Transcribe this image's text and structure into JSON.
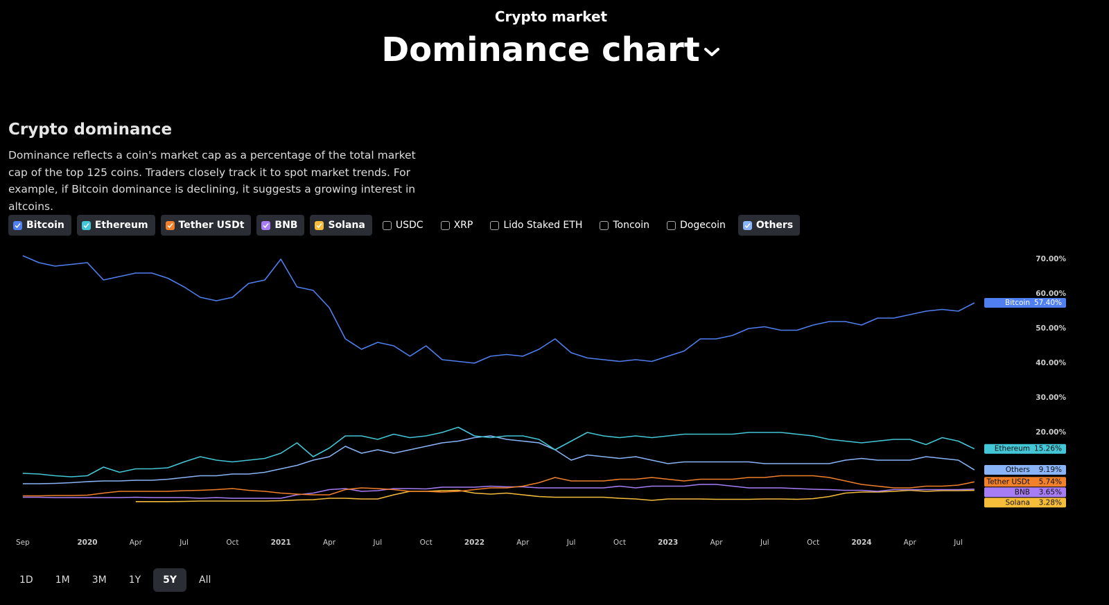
{
  "header": {
    "kicker": "Crypto market",
    "title": "Dominance chart"
  },
  "section": {
    "title": "Crypto dominance",
    "description": "Dominance reflects a coin's market cap as a percentage of the total market cap of the top 125 coins. Traders closely track it to spot market trends. For example, if Bitcoin dominance is declining, it suggests a growing interest in altcoins."
  },
  "unselected": [
    "USDC",
    "XRP",
    "Lido Staked ETH",
    "Toncoin",
    "Dogecoin"
  ],
  "ranges": [
    "1D",
    "1M",
    "3M",
    "1Y",
    "5Y",
    "All"
  ],
  "active_range": "5Y",
  "chart_data": {
    "type": "line",
    "categories": [
      "Sep",
      null,
      null,
      null,
      "2020",
      null,
      null,
      "Apr",
      null,
      null,
      "Jul",
      null,
      null,
      "Oct",
      null,
      null,
      "2021",
      null,
      null,
      "Apr",
      null,
      null,
      "Jul",
      null,
      null,
      "Oct",
      null,
      null,
      "2022",
      null,
      null,
      "Apr",
      null,
      null,
      "Jul",
      null,
      null,
      "Oct",
      null,
      null,
      "2023",
      null,
      null,
      "Apr",
      null,
      null,
      "Jul",
      null,
      null,
      "Oct",
      null,
      null,
      "2024",
      null,
      null,
      "Apr",
      null,
      null,
      "Jul",
      null
    ],
    "ylim": [
      0,
      75
    ],
    "yticks": [
      {
        "value": 20,
        "label": "20.00%"
      },
      {
        "value": 30,
        "label": "30.00%"
      },
      {
        "value": 40,
        "label": "40.00%"
      },
      {
        "value": 50,
        "label": "50.00%"
      },
      {
        "value": 60,
        "label": "60.00%"
      },
      {
        "value": 70,
        "label": "70.00%"
      }
    ],
    "grid": false,
    "series": [
      {
        "name": "Bitcoin",
        "color": "#4f7ff0",
        "values": [
          71,
          69,
          68,
          68.5,
          69,
          64,
          65,
          66,
          66,
          64.5,
          62,
          59,
          58,
          59,
          63,
          64,
          70,
          62,
          61,
          56,
          47,
          44,
          46,
          45,
          42,
          45,
          41,
          40.5,
          40,
          42,
          42.5,
          42,
          44,
          47,
          43,
          41.5,
          41,
          40.5,
          41,
          40.5,
          42,
          43.5,
          47,
          47,
          48,
          50,
          50.5,
          49.5,
          49.5,
          51,
          52,
          52,
          51,
          53,
          53,
          54,
          55,
          55.5,
          55,
          57.4
        ],
        "value_labels": [
          null,
          null,
          null,
          null,
          null,
          null,
          null,
          null,
          null,
          null,
          null,
          null,
          null,
          null,
          null,
          null,
          null,
          null,
          null,
          null,
          null,
          null,
          null,
          null,
          null,
          null,
          null,
          null,
          null,
          null,
          null,
          null,
          null,
          null,
          null,
          null,
          null,
          null,
          null,
          null,
          null,
          null,
          null,
          null,
          null,
          null,
          null,
          null,
          null,
          null,
          null,
          null,
          null,
          null,
          null,
          null,
          null,
          null,
          null,
          "57.40%"
        ]
      },
      {
        "name": "Ethereum",
        "color": "#43c6d6",
        "values": [
          8.2,
          8,
          7.5,
          7.2,
          7.5,
          10,
          8.5,
          9.5,
          9.5,
          9.8,
          11.5,
          13,
          12,
          11.5,
          12,
          12.5,
          14,
          17,
          13,
          15.5,
          19,
          19,
          18,
          19.5,
          18.5,
          19,
          20,
          21.5,
          19,
          18.5,
          19,
          19,
          18,
          15,
          17.5,
          20,
          19,
          18.5,
          19,
          18.5,
          19,
          19.5,
          19.5,
          19.5,
          19.5,
          20,
          20,
          20,
          19.5,
          19,
          18,
          17.5,
          17,
          17.5,
          18,
          18,
          16.5,
          18.5,
          17.5,
          15.26
        ],
        "value_labels": [
          null,
          null,
          null,
          null,
          null,
          null,
          null,
          null,
          null,
          null,
          null,
          null,
          null,
          null,
          null,
          null,
          null,
          null,
          null,
          null,
          null,
          null,
          null,
          null,
          null,
          null,
          null,
          null,
          null,
          null,
          null,
          null,
          null,
          null,
          null,
          null,
          null,
          null,
          null,
          null,
          null,
          null,
          null,
          null,
          null,
          null,
          null,
          null,
          null,
          null,
          null,
          null,
          null,
          null,
          null,
          null,
          null,
          null,
          null,
          "15.26%"
        ]
      },
      {
        "name": "Tether USDt",
        "color": "#f0802a",
        "values": [
          1.7,
          1.7,
          1.8,
          1.8,
          1.9,
          2.5,
          3,
          3,
          3,
          3,
          3.2,
          3.3,
          3.5,
          3.8,
          3.3,
          3,
          2.5,
          2.2,
          2,
          2,
          3.5,
          4,
          3.8,
          3.5,
          3,
          3,
          2.8,
          3,
          3.5,
          4,
          4,
          4.5,
          5.5,
          7,
          6,
          6,
          6,
          6.5,
          6.5,
          7,
          6.5,
          6,
          6.5,
          6.5,
          6.5,
          7,
          7,
          7.5,
          7.5,
          7.5,
          7,
          6,
          5,
          4.5,
          4,
          4,
          4.5,
          4.5,
          4.8,
          5.74
        ],
        "value_labels": [
          null,
          null,
          null,
          null,
          null,
          null,
          null,
          null,
          null,
          null,
          null,
          null,
          null,
          null,
          null,
          null,
          null,
          null,
          null,
          null,
          null,
          null,
          null,
          null,
          null,
          null,
          null,
          null,
          null,
          null,
          null,
          null,
          null,
          null,
          null,
          null,
          null,
          null,
          null,
          null,
          null,
          null,
          null,
          null,
          null,
          null,
          null,
          null,
          null,
          null,
          null,
          null,
          null,
          null,
          null,
          null,
          null,
          null,
          null,
          "5.74%"
        ]
      },
      {
        "name": "BNB",
        "color": "#a77df5",
        "values": [
          1.3,
          1.3,
          1.2,
          1.2,
          1.2,
          1.2,
          1.2,
          1.3,
          1.2,
          1.2,
          1.2,
          1,
          1.2,
          1,
          1,
          1,
          1,
          2,
          2.5,
          3.5,
          3.8,
          3,
          3.2,
          3.8,
          3.8,
          3.7,
          4.2,
          4.2,
          4.2,
          4.5,
          4.3,
          4.3,
          4,
          4,
          4,
          4,
          4,
          4.5,
          4,
          4.5,
          4.5,
          4.5,
          5,
          5,
          4.5,
          4,
          4,
          4,
          3.8,
          3.6,
          3.5,
          3.3,
          3.3,
          3,
          3.5,
          3.5,
          3.5,
          3.5,
          3.5,
          3.65
        ],
        "value_labels": [
          null,
          null,
          null,
          null,
          null,
          null,
          null,
          null,
          null,
          null,
          null,
          null,
          null,
          null,
          null,
          null,
          null,
          null,
          null,
          null,
          null,
          null,
          null,
          null,
          null,
          null,
          null,
          null,
          null,
          null,
          null,
          null,
          null,
          null,
          null,
          null,
          null,
          null,
          null,
          null,
          null,
          null,
          null,
          null,
          null,
          null,
          null,
          null,
          null,
          null,
          null,
          null,
          null,
          null,
          null,
          null,
          null,
          null,
          null,
          "3.65%"
        ]
      },
      {
        "name": "Solana",
        "color": "#f5bd3a",
        "values": [
          null,
          null,
          null,
          null,
          null,
          null,
          null,
          0.05,
          0.05,
          0.05,
          0.1,
          0.2,
          0.2,
          0.2,
          0.2,
          0.2,
          0.3,
          0.5,
          0.6,
          1,
          1,
          0.8,
          0.8,
          2,
          3,
          3,
          3.2,
          3.3,
          2.5,
          2.2,
          2.5,
          2,
          1.5,
          1.3,
          1.3,
          1.3,
          1.3,
          1,
          0.8,
          0.4,
          0.8,
          0.8,
          0.8,
          0.7,
          0.7,
          0.7,
          0.8,
          0.8,
          0.7,
          0.9,
          1.5,
          2.5,
          2.8,
          2.8,
          3,
          3.3,
          3,
          3.2,
          3.2,
          3.28
        ],
        "value_labels": [
          null,
          null,
          null,
          null,
          null,
          null,
          null,
          null,
          null,
          null,
          null,
          null,
          null,
          null,
          null,
          null,
          null,
          null,
          null,
          null,
          null,
          null,
          null,
          null,
          null,
          null,
          null,
          null,
          null,
          null,
          null,
          null,
          null,
          null,
          null,
          null,
          null,
          null,
          null,
          null,
          null,
          null,
          null,
          null,
          null,
          null,
          null,
          null,
          null,
          null,
          null,
          null,
          null,
          null,
          null,
          null,
          null,
          null,
          null,
          "3.28%"
        ]
      },
      {
        "name": "Others",
        "color": "#8ab4f8",
        "values": [
          5.2,
          5.2,
          5.3,
          5.5,
          5.8,
          6,
          6,
          6.2,
          6.2,
          6.5,
          7,
          7.5,
          7.5,
          8,
          8,
          8.5,
          9.5,
          10.5,
          12,
          13,
          16,
          14,
          15,
          14,
          15,
          16,
          17,
          17.5,
          18.5,
          19,
          18,
          17.5,
          17,
          15,
          12,
          13.5,
          13,
          12.5,
          13,
          12,
          11,
          11.5,
          11.5,
          11.5,
          11.5,
          11.5,
          11,
          11,
          11,
          11,
          11,
          12,
          12.5,
          12,
          12,
          12,
          13,
          12.5,
          12,
          9.19
        ],
        "value_labels": [
          null,
          null,
          null,
          null,
          null,
          null,
          null,
          null,
          null,
          null,
          null,
          null,
          null,
          null,
          null,
          null,
          null,
          null,
          null,
          null,
          null,
          null,
          null,
          null,
          null,
          null,
          null,
          null,
          null,
          null,
          null,
          null,
          null,
          null,
          null,
          null,
          null,
          null,
          null,
          null,
          null,
          null,
          null,
          null,
          null,
          null,
          null,
          null,
          null,
          null,
          null,
          null,
          null,
          null,
          null,
          null,
          null,
          null,
          null,
          "9.19%"
        ]
      }
    ]
  }
}
